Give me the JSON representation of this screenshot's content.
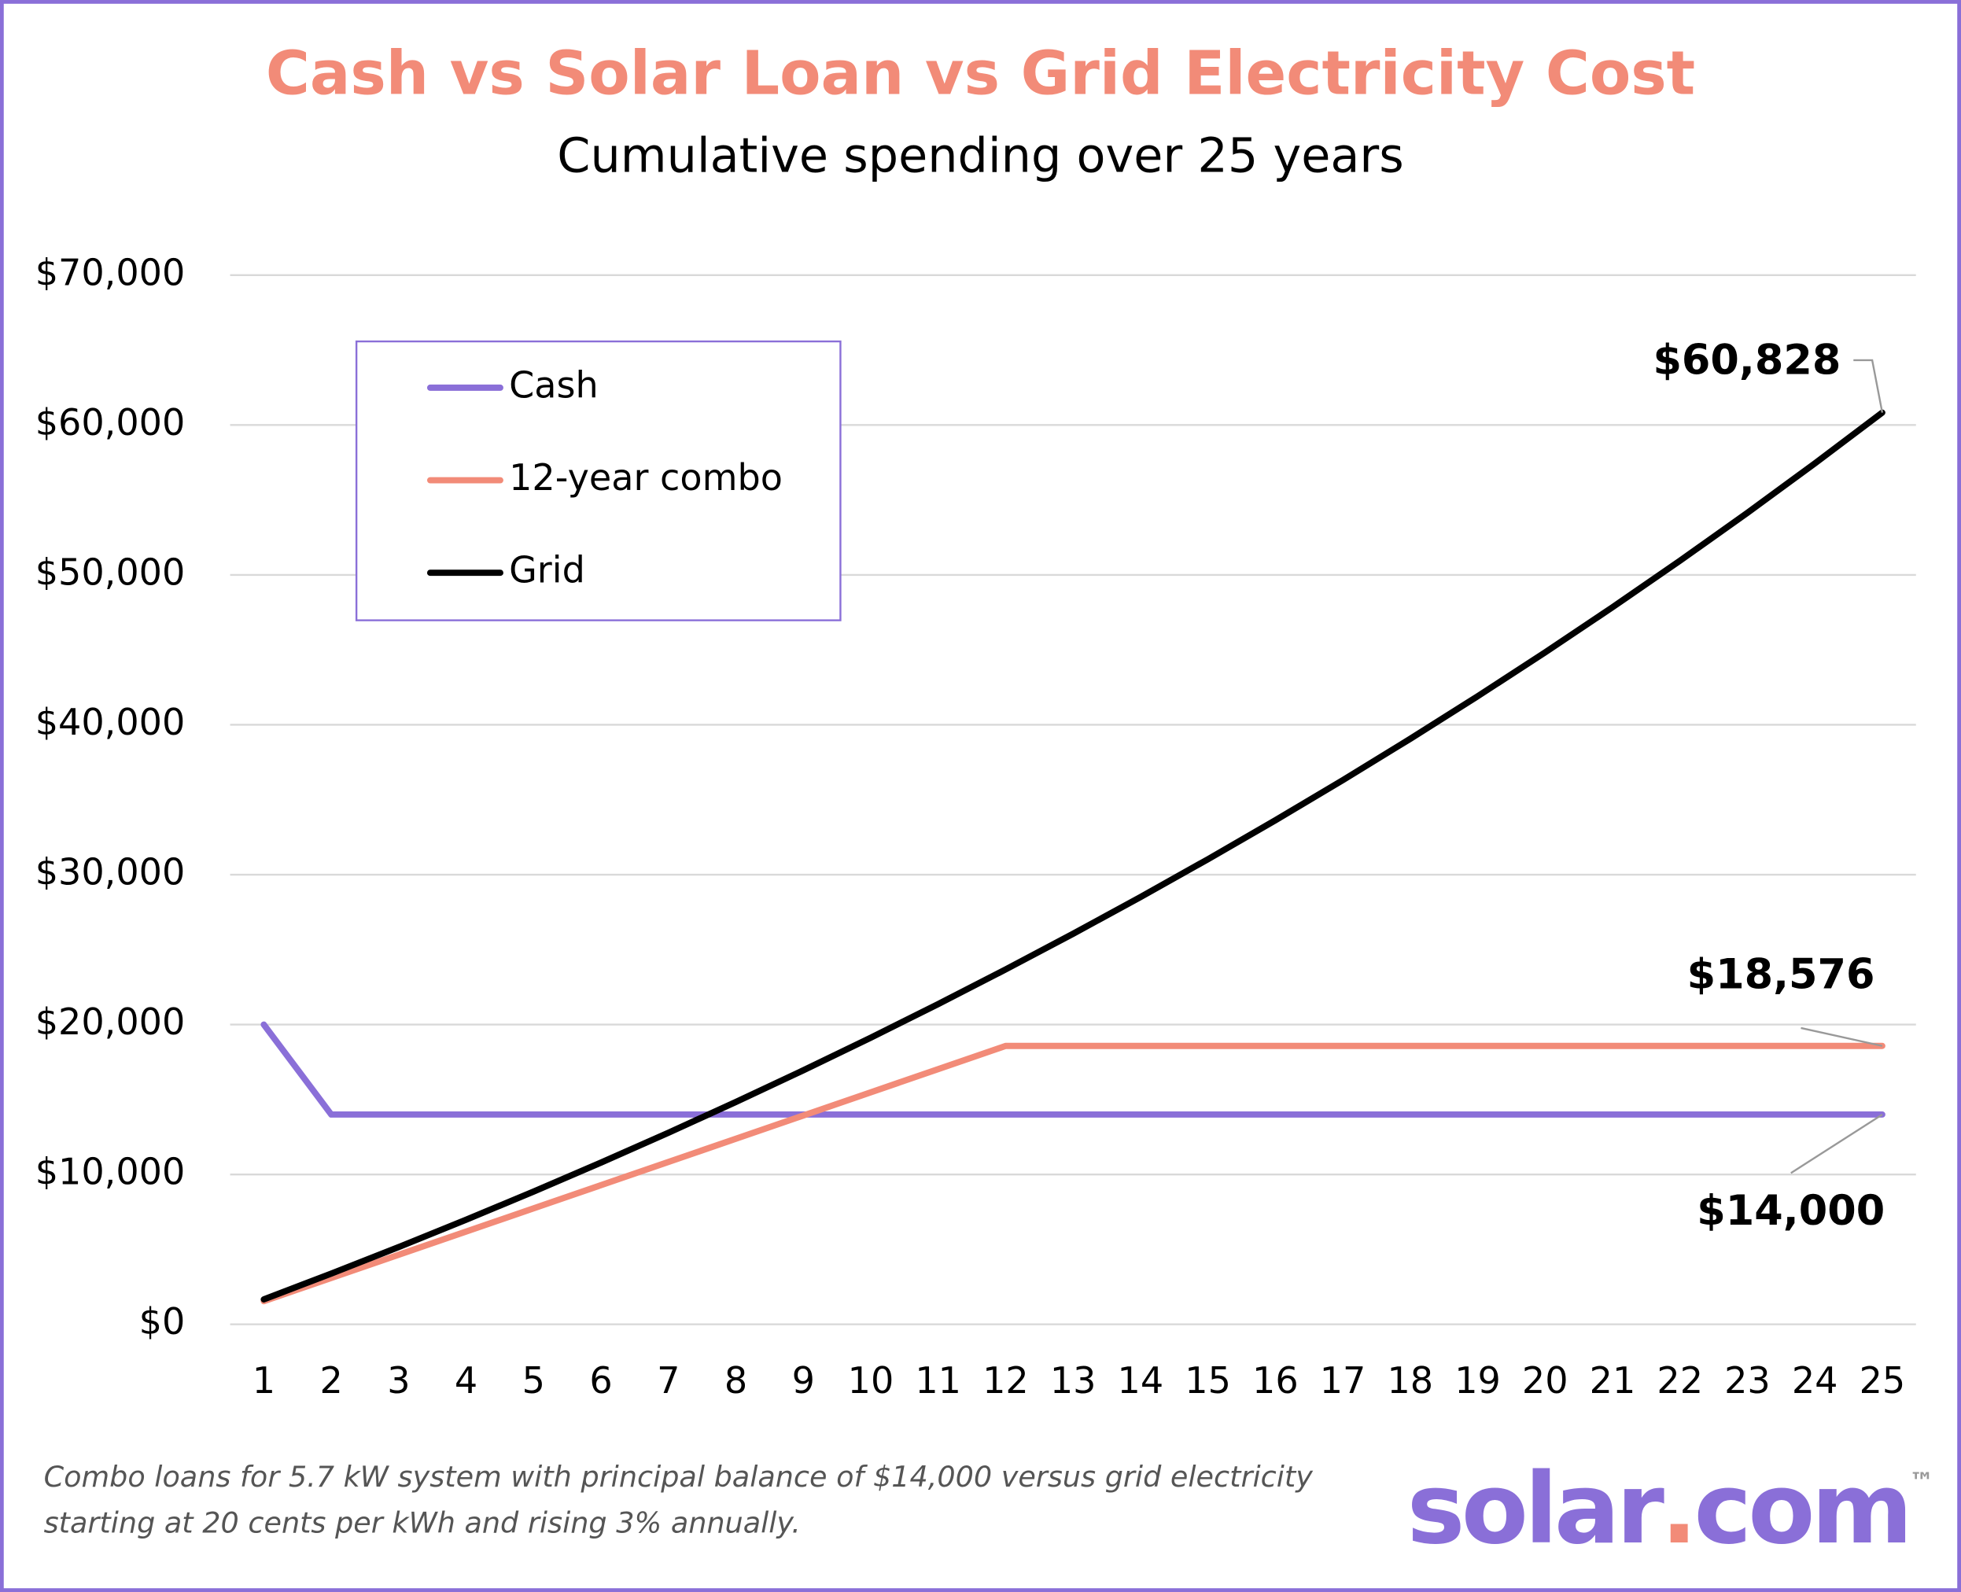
{
  "chart_data": {
    "type": "line",
    "title": "Cash vs Solar Loan vs Grid Electricity Cost",
    "subtitle": "Cumulative spending over 25 years",
    "categories": [
      "1",
      "2",
      "3",
      "4",
      "5",
      "6",
      "7",
      "8",
      "9",
      "10",
      "11",
      "12",
      "13",
      "14",
      "15",
      "16",
      "17",
      "18",
      "19",
      "20",
      "21",
      "22",
      "23",
      "24",
      "25"
    ],
    "series": [
      {
        "name": "Cash",
        "color": "#8a6fd8",
        "values": [
          20000,
          14000,
          14000,
          14000,
          14000,
          14000,
          14000,
          14000,
          14000,
          14000,
          14000,
          14000,
          14000,
          14000,
          14000,
          14000,
          14000,
          14000,
          14000,
          14000,
          14000,
          14000,
          14000,
          14000,
          14000
        ],
        "value_labels": [
          null,
          null,
          null,
          null,
          null,
          null,
          null,
          null,
          null,
          null,
          null,
          null,
          null,
          null,
          null,
          null,
          null,
          null,
          null,
          null,
          null,
          null,
          null,
          null,
          "$14,000"
        ]
      },
      {
        "name": "12-year combo",
        "color": "#f28b78",
        "values": [
          1548,
          3096,
          4644,
          6192,
          7740,
          9288,
          10836,
          12384,
          13932,
          15480,
          17028,
          18576,
          18576,
          18576,
          18576,
          18576,
          18576,
          18576,
          18576,
          18576,
          18576,
          18576,
          18576,
          18576,
          18576
        ],
        "value_labels": [
          null,
          null,
          null,
          null,
          null,
          null,
          null,
          null,
          null,
          null,
          null,
          null,
          null,
          null,
          null,
          null,
          null,
          null,
          null,
          null,
          null,
          null,
          null,
          null,
          "$18,576"
        ]
      },
      {
        "name": "Grid",
        "color": "#000000",
        "values": [
          1668,
          3387,
          5157,
          6980,
          8858,
          10792,
          12784,
          14836,
          16950,
          19126,
          21369,
          23678,
          26057,
          28507,
          31031,
          33630,
          36307,
          39065,
          41905,
          44831,
          47844,
          50948,
          54144,
          57437,
          60828
        ],
        "value_labels": [
          null,
          null,
          null,
          null,
          null,
          null,
          null,
          null,
          null,
          null,
          null,
          null,
          null,
          null,
          null,
          null,
          null,
          null,
          null,
          null,
          null,
          null,
          null,
          null,
          "$60,828"
        ]
      }
    ],
    "ylim": [
      0,
      70000
    ],
    "yticks": [
      {
        "value": 0,
        "label": "$0"
      },
      {
        "value": 10000,
        "label": "$10,000"
      },
      {
        "value": 20000,
        "label": "$20,000"
      },
      {
        "value": 30000,
        "label": "$30,000"
      },
      {
        "value": 40000,
        "label": "$40,000"
      },
      {
        "value": 50000,
        "label": "$50,000"
      },
      {
        "value": 60000,
        "label": "$60,000"
      },
      {
        "value": 70000,
        "label": "$70,000"
      }
    ],
    "grid": true,
    "legend": "upper left",
    "footnote": [
      "Combo loans for 5.7 kW system with principal balance of $14,000 versus grid electricity",
      "starting at 20 cents per kWh and rising 3% annually."
    ],
    "logo": [
      "solar",
      ".",
      "com",
      "™"
    ]
  }
}
